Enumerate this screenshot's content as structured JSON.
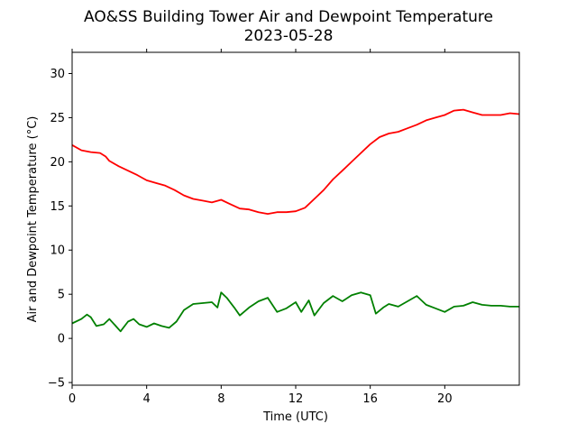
{
  "chart_data": {
    "type": "line",
    "title": "AO&SS Building Tower Air and Dewpoint Temperature",
    "subtitle": "2023-05-28",
    "xlabel": "Time (UTC)",
    "ylabel": "Air and Dewpoint Temperature (°C)",
    "xlim": [
      0,
      24
    ],
    "ylim": [
      -5.3,
      32.4
    ],
    "xticks": [
      0,
      4,
      8,
      12,
      16,
      20
    ],
    "xtick_labels": [
      "0",
      "4",
      "8",
      "12",
      "16",
      "20"
    ],
    "yticks": [
      -5,
      0,
      5,
      10,
      15,
      20,
      25,
      30
    ],
    "ytick_labels": [
      "−5",
      "0",
      "5",
      "10",
      "15",
      "20",
      "25",
      "30"
    ],
    "grid": false,
    "legend": null,
    "series": [
      {
        "color": "#ff0000",
        "points": [
          [
            0,
            21.9
          ],
          [
            0.5,
            21.3
          ],
          [
            1,
            21.1
          ],
          [
            1.5,
            21.0
          ],
          [
            1.8,
            20.6
          ],
          [
            2,
            20.1
          ],
          [
            2.5,
            19.5
          ],
          [
            3,
            19.0
          ],
          [
            3.5,
            18.5
          ],
          [
            4,
            17.9
          ],
          [
            4.5,
            17.6
          ],
          [
            5,
            17.3
          ],
          [
            5.5,
            16.8
          ],
          [
            6,
            16.2
          ],
          [
            6.5,
            15.8
          ],
          [
            7,
            15.6
          ],
          [
            7.5,
            15.4
          ],
          [
            8,
            15.7
          ],
          [
            8.5,
            15.2
          ],
          [
            9,
            14.7
          ],
          [
            9.5,
            14.6
          ],
          [
            10,
            14.3
          ],
          [
            10.5,
            14.1
          ],
          [
            11,
            14.3
          ],
          [
            11.5,
            14.3
          ],
          [
            12,
            14.4
          ],
          [
            12.5,
            14.8
          ],
          [
            13,
            15.8
          ],
          [
            13.5,
            16.8
          ],
          [
            14,
            18.0
          ],
          [
            14.5,
            19.0
          ],
          [
            15,
            20.0
          ],
          [
            15.5,
            21.0
          ],
          [
            16,
            22.0
          ],
          [
            16.5,
            22.8
          ],
          [
            17,
            23.2
          ],
          [
            17.5,
            23.4
          ],
          [
            18,
            23.8
          ],
          [
            18.5,
            24.2
          ],
          [
            19,
            24.7
          ],
          [
            19.5,
            25.0
          ],
          [
            20,
            25.3
          ],
          [
            20.5,
            25.8
          ],
          [
            21,
            25.9
          ],
          [
            21.5,
            25.6
          ],
          [
            22,
            25.3
          ],
          [
            22.5,
            25.3
          ],
          [
            23,
            25.3
          ],
          [
            23.5,
            25.5
          ],
          [
            24,
            25.4
          ]
        ]
      },
      {
        "color": "#008000",
        "points": [
          [
            0,
            1.7
          ],
          [
            0.5,
            2.2
          ],
          [
            0.8,
            2.7
          ],
          [
            1,
            2.4
          ],
          [
            1.3,
            1.4
          ],
          [
            1.7,
            1.6
          ],
          [
            2,
            2.2
          ],
          [
            2.3,
            1.5
          ],
          [
            2.6,
            0.8
          ],
          [
            3,
            1.9
          ],
          [
            3.3,
            2.2
          ],
          [
            3.6,
            1.6
          ],
          [
            4,
            1.3
          ],
          [
            4.4,
            1.7
          ],
          [
            4.8,
            1.4
          ],
          [
            5.2,
            1.2
          ],
          [
            5.6,
            1.9
          ],
          [
            6,
            3.2
          ],
          [
            6.5,
            3.9
          ],
          [
            7,
            4.0
          ],
          [
            7.5,
            4.1
          ],
          [
            7.8,
            3.5
          ],
          [
            8,
            5.2
          ],
          [
            8.3,
            4.6
          ],
          [
            8.7,
            3.5
          ],
          [
            9,
            2.6
          ],
          [
            9.5,
            3.5
          ],
          [
            10,
            4.2
          ],
          [
            10.5,
            4.6
          ],
          [
            11,
            3.0
          ],
          [
            11.5,
            3.4
          ],
          [
            12,
            4.1
          ],
          [
            12.3,
            3.0
          ],
          [
            12.7,
            4.3
          ],
          [
            13,
            2.6
          ],
          [
            13.5,
            4.0
          ],
          [
            14,
            4.8
          ],
          [
            14.5,
            4.2
          ],
          [
            15,
            4.9
          ],
          [
            15.5,
            5.2
          ],
          [
            16,
            4.9
          ],
          [
            16.3,
            2.8
          ],
          [
            16.7,
            3.5
          ],
          [
            17,
            3.9
          ],
          [
            17.5,
            3.6
          ],
          [
            18,
            4.2
          ],
          [
            18.5,
            4.8
          ],
          [
            19,
            3.8
          ],
          [
            19.5,
            3.4
          ],
          [
            20,
            3.0
          ],
          [
            20.5,
            3.6
          ],
          [
            21,
            3.7
          ],
          [
            21.5,
            4.1
          ],
          [
            22,
            3.8
          ],
          [
            22.5,
            3.7
          ],
          [
            23,
            3.7
          ],
          [
            23.5,
            3.6
          ],
          [
            24,
            3.6
          ]
        ]
      }
    ]
  }
}
